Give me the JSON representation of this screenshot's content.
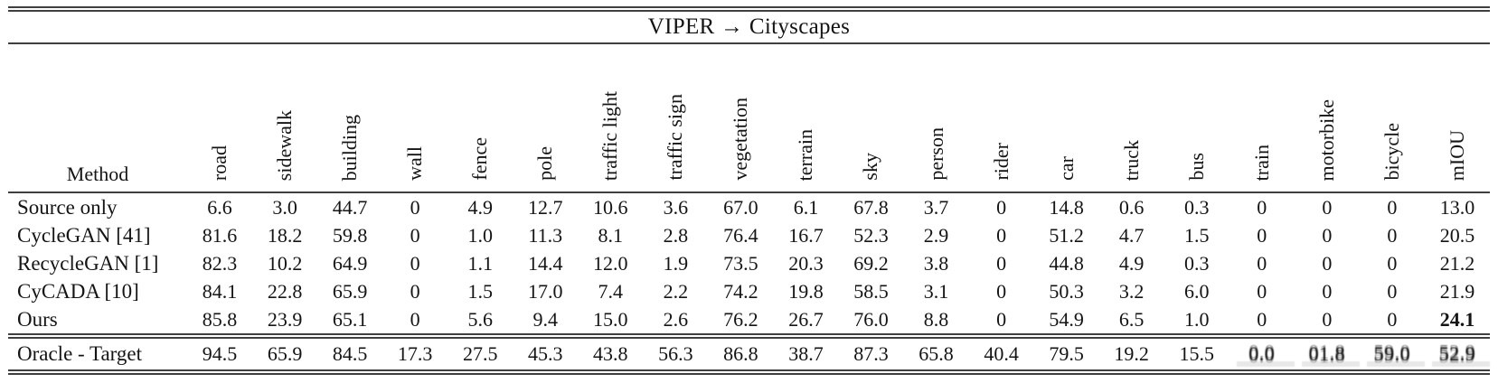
{
  "title": "VIPER → Cityscapes",
  "colors": {
    "background": "#ffffff",
    "text": "#141414",
    "rule": "#3f3f3f"
  },
  "table": {
    "method_header": "Method",
    "class_headers": [
      "road",
      "sidewalk",
      "building",
      "wall",
      "fence",
      "pole",
      "traffic light",
      "traffic sign",
      "vegetation",
      "terrain",
      "sky",
      "person",
      "rider",
      "car",
      "truck",
      "bus",
      "train",
      "motorbike",
      "bicycle",
      "mIOU"
    ],
    "rows": [
      {
        "method": "Source only",
        "values": [
          "6.6",
          "3.0",
          "44.7",
          "0",
          "4.9",
          "12.7",
          "10.6",
          "3.6",
          "67.0",
          "6.1",
          "67.8",
          "3.7",
          "0",
          "14.8",
          "0.6",
          "0.3",
          "0",
          "0",
          "0",
          "13.0"
        ]
      },
      {
        "method": "CycleGAN [41]",
        "values": [
          "81.6",
          "18.2",
          "59.8",
          "0",
          "1.0",
          "11.3",
          "8.1",
          "2.8",
          "76.4",
          "16.7",
          "52.3",
          "2.9",
          "0",
          "51.2",
          "4.7",
          "1.5",
          "0",
          "0",
          "0",
          "20.5"
        ]
      },
      {
        "method": "RecycleGAN [1]",
        "values": [
          "82.3",
          "10.2",
          "64.9",
          "0",
          "1.1",
          "14.4",
          "12.0",
          "1.9",
          "73.5",
          "20.3",
          "69.2",
          "3.8",
          "0",
          "44.8",
          "4.9",
          "0.3",
          "0",
          "0",
          "0",
          "21.2"
        ]
      },
      {
        "method": "CyCADA [10]",
        "values": [
          "84.1",
          "22.8",
          "65.9",
          "0",
          "1.5",
          "17.0",
          "7.4",
          "2.2",
          "74.2",
          "19.8",
          "58.5",
          "3.1",
          "0",
          "50.3",
          "3.2",
          "6.0",
          "0",
          "0",
          "0",
          "21.9"
        ]
      },
      {
        "method": "Ours",
        "values": [
          "85.8",
          "23.9",
          "65.1",
          "0",
          "5.6",
          "9.4",
          "15.0",
          "2.6",
          "76.2",
          "26.7",
          "76.0",
          "8.8",
          "0",
          "54.9",
          "6.5",
          "1.0",
          "0",
          "0",
          "0",
          "24.1"
        ],
        "bold_indices": [
          19
        ]
      },
      {
        "method": "Oracle - Target",
        "values": [
          "94.5",
          "65.9",
          "84.5",
          "17.3",
          "27.5",
          "45.3",
          "43.8",
          "56.3",
          "86.8",
          "38.7",
          "87.3",
          "65.8",
          "40.4",
          "79.5",
          "19.2",
          "15.5",
          "0.0",
          "01.8",
          "59.0",
          "52.9"
        ],
        "smudged_indices": [
          16,
          17,
          18,
          19
        ],
        "separator_above": true
      }
    ]
  }
}
